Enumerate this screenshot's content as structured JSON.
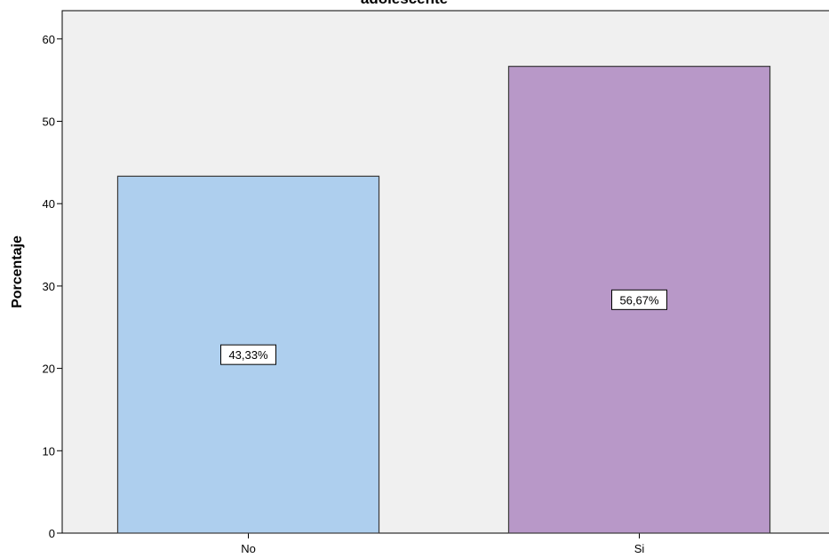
{
  "chart_data": {
    "type": "bar",
    "title": "adolescente",
    "xlabel": "",
    "ylabel": "Porcentaje",
    "categories": [
      "No",
      "Si"
    ],
    "values": [
      43.33,
      56.67
    ],
    "data_labels": [
      "43,33%",
      "56,67%"
    ],
    "bar_colors": [
      "#aecfee",
      "#b898c8"
    ],
    "ylim": [
      0,
      63
    ],
    "yticks": [
      0,
      10,
      20,
      30,
      40,
      50,
      60
    ],
    "grid": false,
    "legend": "none",
    "plot_background": "#f0f0f0"
  }
}
